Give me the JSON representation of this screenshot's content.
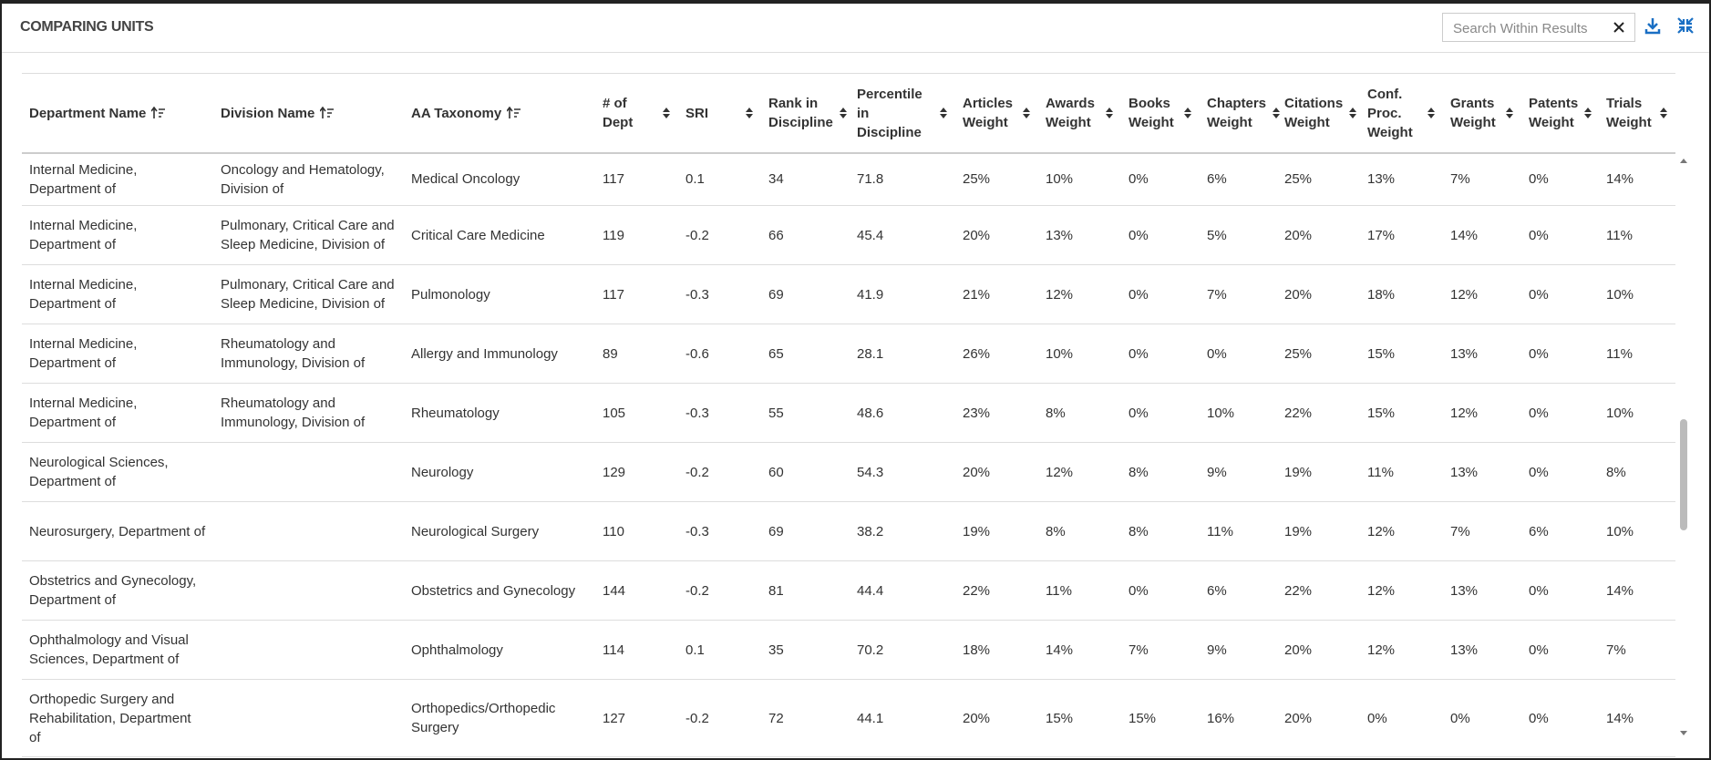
{
  "header": {
    "title": "COMPARING UNITS",
    "search_placeholder": "Search Within Results"
  },
  "table": {
    "columns": [
      "Department Name",
      "Division Name",
      "AA Taxonomy",
      "# of Dept",
      "SRI",
      "Rank in Discipline",
      "Percentile in Discipline",
      "Articles Weight",
      "Awards Weight",
      "Books Weight",
      "Chapters Weight",
      "Citations Weight",
      "Conf. Proc. Weight",
      "Grants Weight",
      "Patents Weight",
      "Trials Weight"
    ],
    "rows": [
      [
        "Internal Medicine, Department of",
        "Oncology and Hematology, Division of",
        "Medical Oncology",
        "117",
        "0.1",
        "34",
        "71.8",
        "25%",
        "10%",
        "0%",
        "6%",
        "25%",
        "13%",
        "7%",
        "0%",
        "14%"
      ],
      [
        "Internal Medicine, Department of",
        "Pulmonary, Critical Care and Sleep Medicine, Division of",
        "Critical Care Medicine",
        "119",
        "-0.2",
        "66",
        "45.4",
        "20%",
        "13%",
        "0%",
        "5%",
        "20%",
        "17%",
        "14%",
        "0%",
        "11%"
      ],
      [
        "Internal Medicine, Department of",
        "Pulmonary, Critical Care and Sleep Medicine, Division of",
        "Pulmonology",
        "117",
        "-0.3",
        "69",
        "41.9",
        "21%",
        "12%",
        "0%",
        "7%",
        "20%",
        "18%",
        "12%",
        "0%",
        "10%"
      ],
      [
        "Internal Medicine, Department of",
        "Rheumatology and Immunology, Division of",
        "Allergy and Immunology",
        "89",
        "-0.6",
        "65",
        "28.1",
        "26%",
        "10%",
        "0%",
        "0%",
        "25%",
        "15%",
        "13%",
        "0%",
        "11%"
      ],
      [
        "Internal Medicine, Department of",
        "Rheumatology and Immunology, Division of",
        "Rheumatology",
        "105",
        "-0.3",
        "55",
        "48.6",
        "23%",
        "8%",
        "0%",
        "10%",
        "22%",
        "15%",
        "12%",
        "0%",
        "10%"
      ],
      [
        "Neurological Sciences, Department of",
        "",
        "Neurology",
        "129",
        "-0.2",
        "60",
        "54.3",
        "20%",
        "12%",
        "8%",
        "9%",
        "19%",
        "11%",
        "13%",
        "0%",
        "8%"
      ],
      [
        "Neurosurgery, Department of",
        "",
        "Neurological Surgery",
        "110",
        "-0.3",
        "69",
        "38.2",
        "19%",
        "8%",
        "8%",
        "11%",
        "19%",
        "12%",
        "7%",
        "6%",
        "10%"
      ],
      [
        "Obstetrics and Gynecology, Department of",
        "",
        "Obstetrics and Gynecology",
        "144",
        "-0.2",
        "81",
        "44.4",
        "22%",
        "11%",
        "0%",
        "6%",
        "22%",
        "12%",
        "13%",
        "0%",
        "14%"
      ],
      [
        "Ophthalmology and Visual Sciences, Department of",
        "",
        "Ophthalmology",
        "114",
        "0.1",
        "35",
        "70.2",
        "18%",
        "14%",
        "7%",
        "9%",
        "20%",
        "12%",
        "13%",
        "0%",
        "7%"
      ],
      [
        "Orthopedic Surgery and Rehabilitation, Department of",
        "",
        "Orthopedics/Orthopedic Surgery",
        "127",
        "-0.2",
        "72",
        "44.1",
        "20%",
        "15%",
        "15%",
        "16%",
        "20%",
        "0%",
        "0%",
        "0%",
        "14%"
      ]
    ]
  }
}
